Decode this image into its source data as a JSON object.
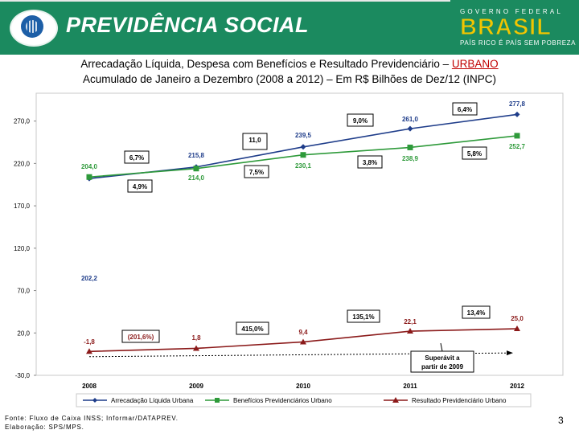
{
  "header": {
    "brand": "PREVIDÊNCIA SOCIAL",
    "gov_top": "GOVERNO FEDERAL",
    "gov_name": "BRASIL",
    "gov_slogan": "PAÍS RICO É PAÍS SEM POBREZA"
  },
  "title": {
    "line1_prefix": "Arrecadação Líquida, Despesa com Benefícios e Resultado Previdenciário – ",
    "line1_highlight": "URBANO",
    "line2": "Acumulado de Janeiro a Dezembro (2008 a 2012) – Em R$ Bilhões de Dez/12 (INPC)"
  },
  "chart_data": {
    "type": "line",
    "categories": [
      "2008",
      "2009",
      "2010",
      "2011",
      "2012"
    ],
    "ylim": [
      -30,
      300
    ],
    "yticks": [
      -30,
      20,
      70,
      120,
      170,
      220,
      270
    ],
    "ytick_labels": [
      "-30,0",
      "20,0",
      "70,0",
      "120,0",
      "170,0",
      "220,0",
      "270,0"
    ],
    "series": [
      {
        "name": "Arrecadação Líquida Urbana",
        "color": "#1f3d8a",
        "marker": "diamond",
        "values": [
          202.2,
          215.8,
          239.5,
          261.0,
          277.8
        ],
        "labels": [
          "202,2",
          "215,8",
          "239,5",
          "261,0",
          "277,8"
        ]
      },
      {
        "name": "Benefícios Previdenciários Urbano",
        "color": "#2e9a3a",
        "marker": "square",
        "values": [
          204.0,
          214.0,
          230.1,
          238.9,
          252.7
        ],
        "labels": [
          "204,0",
          "214,0",
          "230,1",
          "238,9",
          "252,7"
        ]
      },
      {
        "name": "Resultado Previdenciário Urbano",
        "color": "#8b1a1a",
        "marker": "triangle",
        "values": [
          -1.8,
          1.8,
          9.4,
          22.1,
          25.0
        ],
        "labels": [
          "-1,8",
          "1,8",
          "9,4",
          "22,1",
          "25,0"
        ]
      }
    ],
    "growth_boxes": [
      {
        "text": "6,7%",
        "anchor": "arrecadacao-2008-2009"
      },
      {
        "text": "4,9%",
        "anchor": "beneficios-2008-2009"
      },
      {
        "text": "11,0",
        "anchor": "arrecadacao-2009-2010"
      },
      {
        "text": "7,5%",
        "anchor": "beneficios-2009-2010"
      },
      {
        "text": "9,0%",
        "anchor": "arrecadacao-2010-2011"
      },
      {
        "text": "3,8%",
        "anchor": "beneficios-2010-2011"
      },
      {
        "text": "6,4%",
        "anchor": "arrecadacao-2011-2012"
      },
      {
        "text": "5,8%",
        "anchor": "beneficios-2011-2012"
      },
      {
        "text": "(201,6%)",
        "anchor": "resultado-2008-2009"
      },
      {
        "text": "415,0%",
        "anchor": "resultado-2009-2010"
      },
      {
        "text": "135,1%",
        "anchor": "resultado-2010-2011"
      },
      {
        "text": "13,4%",
        "anchor": "resultado-2011-2012"
      }
    ],
    "annotation": {
      "line1": "Superávit a",
      "line2": "partir de 2009"
    }
  },
  "footer": {
    "source": "Fonte: Fluxo de Caixa INSS; Informar/DATAPREV.",
    "elaboration": "Elaboração: SPS/MPS.",
    "page": "3"
  }
}
